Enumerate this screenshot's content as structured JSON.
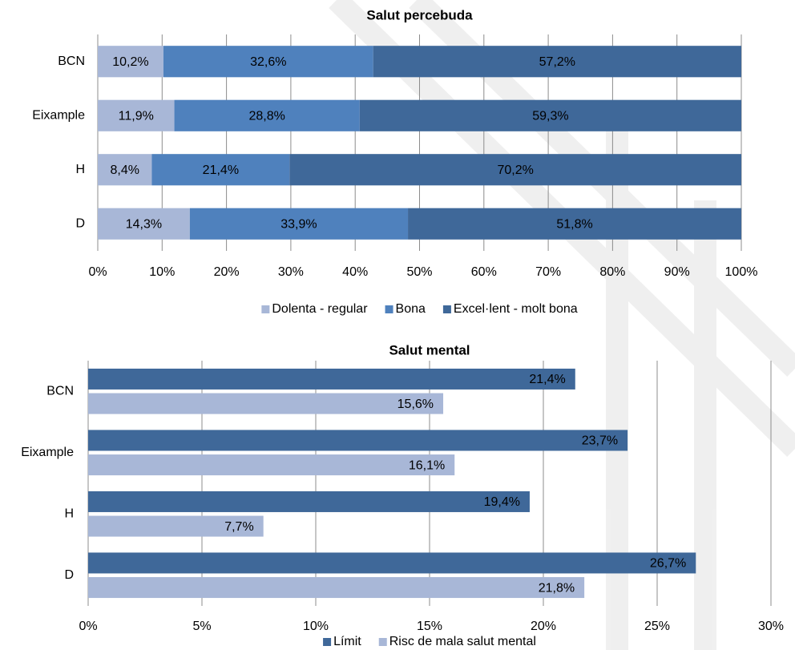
{
  "chart_data": [
    {
      "type": "stacked_bar",
      "title": "Salut percebuda",
      "categories": [
        "BCN",
        "Eixample",
        "H",
        "D"
      ],
      "series": [
        {
          "name": "Dolenta - regular",
          "color": "#a8b7d7",
          "values": [
            10.2,
            11.9,
            8.4,
            14.3
          ],
          "value_labels": [
            "10,2%",
            "11,9%",
            "8,4%",
            "14,3%"
          ]
        },
        {
          "name": "Bona",
          "color": "#4f81bd",
          "values": [
            32.6,
            28.8,
            21.4,
            33.9
          ],
          "value_labels": [
            "32,6%",
            "28,8%",
            "21,4%",
            "33,9%"
          ]
        },
        {
          "name": "Excel·lent - molt bona",
          "color": "#3f6899",
          "values": [
            57.2,
            59.3,
            70.2,
            51.8
          ],
          "value_labels": [
            "57,2%",
            "59,3%",
            "70,2%",
            "51,8%"
          ]
        }
      ],
      "xlim": [
        0,
        100
      ],
      "xticks": [
        {
          "value": 0,
          "label": "0%"
        },
        {
          "value": 10,
          "label": "10%"
        },
        {
          "value": 20,
          "label": "20%"
        },
        {
          "value": 30,
          "label": "30%"
        },
        {
          "value": 40,
          "label": "40%"
        },
        {
          "value": 50,
          "label": "50%"
        },
        {
          "value": 60,
          "label": "60%"
        },
        {
          "value": 70,
          "label": "70%"
        },
        {
          "value": 80,
          "label": "80%"
        },
        {
          "value": 90,
          "label": "90%"
        },
        {
          "value": 100,
          "label": "100%"
        }
      ],
      "grid": true
    },
    {
      "type": "bar",
      "title": "Salut mental",
      "categories": [
        "BCN",
        "Eixample",
        "H",
        "D"
      ],
      "series": [
        {
          "name": "Límit",
          "color": "#3f6899",
          "values": [
            21.4,
            23.7,
            19.4,
            26.7
          ],
          "value_labels": [
            "21,4%",
            "23,7%",
            "19,4%",
            "26,7%"
          ]
        },
        {
          "name": "Risc de mala salut mental",
          "color": "#a8b7d7",
          "values": [
            15.6,
            16.1,
            7.7,
            21.8
          ],
          "value_labels": [
            "15,6%",
            "16,1%",
            "7,7%",
            "21,8%"
          ]
        }
      ],
      "xlim": [
        0,
        30
      ],
      "xticks": [
        {
          "value": 0,
          "label": "0%"
        },
        {
          "value": 5,
          "label": "5%"
        },
        {
          "value": 10,
          "label": "10%"
        },
        {
          "value": 15,
          "label": "15%"
        },
        {
          "value": 20,
          "label": "20%"
        },
        {
          "value": 25,
          "label": "25%"
        },
        {
          "value": 30,
          "label": "30%"
        }
      ],
      "grid": true
    }
  ]
}
